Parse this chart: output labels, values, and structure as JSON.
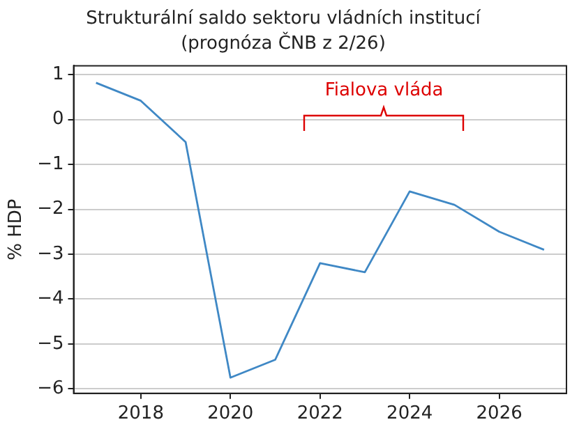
{
  "chart_data": {
    "type": "line",
    "title": "Strukturální saldo sektoru vládních institucí",
    "subtitle": "(prognóza ČNB z 2/26)",
    "ylabel": "% HDP",
    "x": [
      2017,
      2018,
      2019,
      2020,
      2021,
      2022,
      2023,
      2024,
      2025,
      2026,
      2027
    ],
    "series": [
      {
        "color": "#3f88c5",
        "values": [
          0.82,
          0.42,
          -0.5,
          -5.75,
          -5.35,
          -3.2,
          -3.4,
          -1.6,
          -1.9,
          -2.5,
          -2.9
        ]
      }
    ],
    "xlim": [
      2016.5,
      2027.5
    ],
    "xticks": [
      2018,
      2020,
      2022,
      2024,
      2026
    ],
    "ylim": [
      -6.1,
      1.2
    ],
    "yticks": [
      -6,
      -5,
      -4,
      -3,
      -2,
      -1,
      0,
      1
    ],
    "grid": "y",
    "legend": false,
    "marker": "none",
    "line_style": "solid",
    "annotations": [
      "Fialova vláda"
    ]
  }
}
